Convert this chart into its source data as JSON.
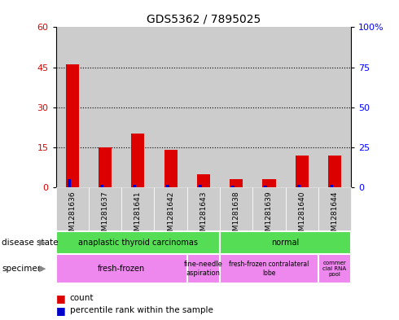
{
  "title": "GDS5362 / 7895025",
  "samples": [
    "GSM1281636",
    "GSM1281637",
    "GSM1281641",
    "GSM1281642",
    "GSM1281643",
    "GSM1281638",
    "GSM1281639",
    "GSM1281640",
    "GSM1281644"
  ],
  "counts": [
    46,
    15,
    20,
    14,
    5,
    3,
    3,
    12,
    12
  ],
  "percentiles": [
    3,
    1,
    1,
    1,
    1,
    0.5,
    0.5,
    1,
    1
  ],
  "left_ylim": [
    0,
    60
  ],
  "right_ylim": [
    0,
    100
  ],
  "left_yticks": [
    0,
    15,
    30,
    45,
    60
  ],
  "right_yticks": [
    0,
    25,
    50,
    75,
    100
  ],
  "right_yticklabels": [
    "0",
    "25",
    "50",
    "75",
    "100%"
  ],
  "count_color": "#dd0000",
  "percentile_color": "#0000cc",
  "col_bg_color": "#cccccc",
  "ds_color_left": "#55dd55",
  "ds_color_right": "#55dd55",
  "sp_color": "#ee88ee",
  "legend_count_label": "count",
  "legend_percentile_label": "percentile rank within the sample",
  "disease_state_label": "disease state",
  "specimen_label": "specimen"
}
